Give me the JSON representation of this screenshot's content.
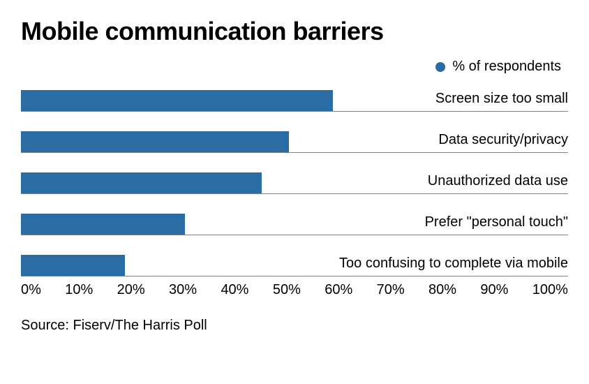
{
  "title": "Mobile communication barriers",
  "legend": {
    "dot_color": "#2a6ca3",
    "label": "% of respondents"
  },
  "chart": {
    "type": "bar",
    "orientation": "horizontal",
    "bar_color": "#2a6ca3",
    "grid_color": "#808080",
    "background_color": "#ffffff",
    "label_fontsize": 20,
    "title_fontsize": 36,
    "xlim": [
      0,
      100
    ],
    "ticks": [
      "0%",
      "10%",
      "20%",
      "30%",
      "40%",
      "50%",
      "60%",
      "70%",
      "80%",
      "90%",
      "100%"
    ],
    "items": [
      {
        "label": "Screen size too small",
        "value": 57
      },
      {
        "label": "Data security/privacy",
        "value": 49
      },
      {
        "label": "Unauthorized data use",
        "value": 44
      },
      {
        "label": "Prefer \"personal touch\"",
        "value": 30
      },
      {
        "label": "Too confusing to complete via mobile",
        "value": 19
      }
    ]
  },
  "source": "Source: Fiserv/The Harris Poll"
}
